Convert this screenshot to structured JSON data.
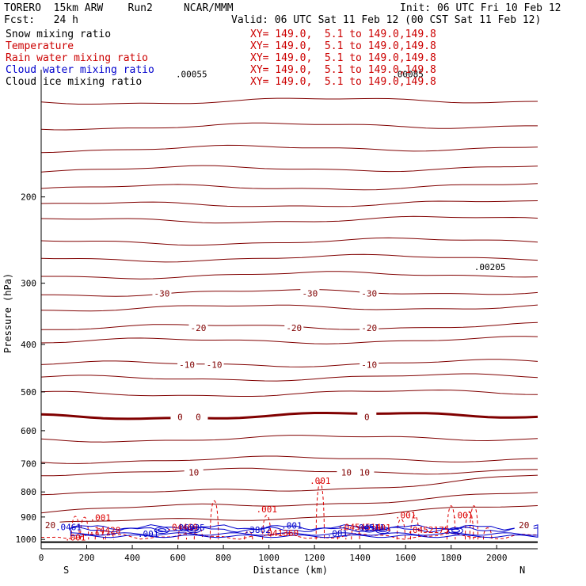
{
  "header": {
    "model": "TORERO  15km ARW    Run2     NCAR/MMM",
    "init": "Init: 06 UTC Fri 10 Feb 12",
    "fcst": "Fcst:   24 h",
    "valid": "Valid: 06 UTC Sat 11 Feb 12 (00 CST Sat 11 Feb 12)",
    "fields": [
      {
        "name": "Snow mixing ratio",
        "xy": "XY= 149.0,  5.1 to 149.0,149.8",
        "name_color": "#000000"
      },
      {
        "name": "Temperature",
        "xy": "XY= 149.0,  5.1 to 149.0,149.8",
        "name_color": "#cc0000"
      },
      {
        "name": "Rain water mixing ratio",
        "xy": "XY= 149.0,  5.1 to 149.0,149.8",
        "name_color": "#cc0000"
      },
      {
        "name": "Cloud water mixing ratio",
        "xy": "XY= 149.0,  5.1 to 149.0,149.8",
        "name_color": "#0000cc"
      },
      {
        "name": "Cloud ice mixing ratio",
        "xy": "XY= 149.0,  5.1 to 149.0,149.8",
        "name_color": "#000000"
      }
    ],
    "xy_color": "#cc0000"
  },
  "colors": {
    "temperature": "#800000",
    "rain": "#dd0000",
    "cloud_water": "#0000cc",
    "surface": "#000000"
  },
  "chart_data": {
    "type": "line",
    "ylabel": "Pressure (hPa)",
    "xlabel": "Distance (km)",
    "x_left_label": "S",
    "x_right_label": "N",
    "xlim": [
      0,
      2180
    ],
    "ylim": [
      1045,
      110
    ],
    "y_scale": "log",
    "x_ticks": [
      0,
      200,
      400,
      600,
      800,
      1000,
      1200,
      1400,
      1600,
      1800,
      2000
    ],
    "y_ticks": [
      200,
      300,
      400,
      500,
      600,
      700,
      800,
      900,
      1000
    ],
    "surface_pressure": 1013,
    "isotherms": [
      {
        "p": 128,
        "label": ""
      },
      {
        "p": 144,
        "label": ""
      },
      {
        "p": 160,
        "label": ""
      },
      {
        "p": 176,
        "label": ""
      },
      {
        "p": 192,
        "label": ""
      },
      {
        "p": 208,
        "label": ""
      },
      {
        "p": 224,
        "label": ""
      },
      {
        "p": 248,
        "label": ""
      },
      {
        "p": 268,
        "label": ""
      },
      {
        "p": 290,
        "label": ""
      },
      {
        "p": 315,
        "label": "-30",
        "label_x": [
          530,
          1180,
          1440
        ]
      },
      {
        "p": 338,
        "label": ""
      },
      {
        "p": 370,
        "label": "-20",
        "label_x": [
          690,
          1110,
          1440
        ]
      },
      {
        "p": 395,
        "label": ""
      },
      {
        "p": 440,
        "label": "-10",
        "label_x": [
          640,
          760,
          1440
        ]
      },
      {
        "p": 470,
        "label": ""
      },
      {
        "p": 506,
        "label": ""
      },
      {
        "p": 562,
        "label": "0",
        "label_x": [
          610,
          690,
          1430
        ],
        "bold": true
      },
      {
        "p": 625,
        "label": ""
      },
      {
        "p": 690,
        "label": ""
      },
      {
        "p": 730,
        "label": "10",
        "label_x": [
          670,
          1340,
          1420
        ]
      },
      {
        "p": 800,
        "label": ""
      },
      {
        "p": 880,
        "label": ""
      },
      {
        "p": 935,
        "label": "20",
        "label_x": [
          40,
          2120
        ]
      }
    ],
    "rain_labels": [
      {
        "x": 260,
        "p": 915,
        "text": ".001"
      },
      {
        "x": 990,
        "p": 880,
        "text": ".001"
      },
      {
        "x": 1225,
        "p": 770,
        "text": ".001"
      },
      {
        "x": 1600,
        "p": 905,
        "text": ".001"
      },
      {
        "x": 1850,
        "p": 905,
        "text": ".001"
      },
      {
        "x": 150,
        "p": 1005,
        "text": ".001"
      },
      {
        "x": 280,
        "p": 972,
        "text": ".14428"
      },
      {
        "x": 620,
        "p": 958,
        "text": ".04469"
      },
      {
        "x": 1400,
        "p": 958,
        "text": ".0454514"
      },
      {
        "x": 1490,
        "p": 960,
        "text": ".001"
      },
      {
        "x": 1700,
        "p": 970,
        "text": ".0452175"
      },
      {
        "x": 1050,
        "p": 985,
        "text": ".041360"
      }
    ],
    "cloud_labels": [
      {
        "x": 120,
        "p": 958,
        "text": ".0461"
      },
      {
        "x": 650,
        "p": 960,
        "text": ".06935"
      },
      {
        "x": 950,
        "p": 970,
        "text": ".3862"
      },
      {
        "x": 1100,
        "p": 950,
        "text": ".001"
      },
      {
        "x": 1440,
        "p": 960,
        "text": ".04511"
      },
      {
        "x": 470,
        "p": 989,
        "text": ".001"
      },
      {
        "x": 1300,
        "p": 987,
        "text": ".001"
      }
    ],
    "max_labels": [
      {
        "x": 1970,
        "p": 282,
        "text": ".00205",
        "color": "#000000"
      },
      {
        "x": 660,
        "p": 114,
        "text": ".00055",
        "color": "#000000"
      },
      {
        "x": 1610,
        "p": 114,
        "text": ".00085",
        "color": "#000000"
      }
    ]
  }
}
